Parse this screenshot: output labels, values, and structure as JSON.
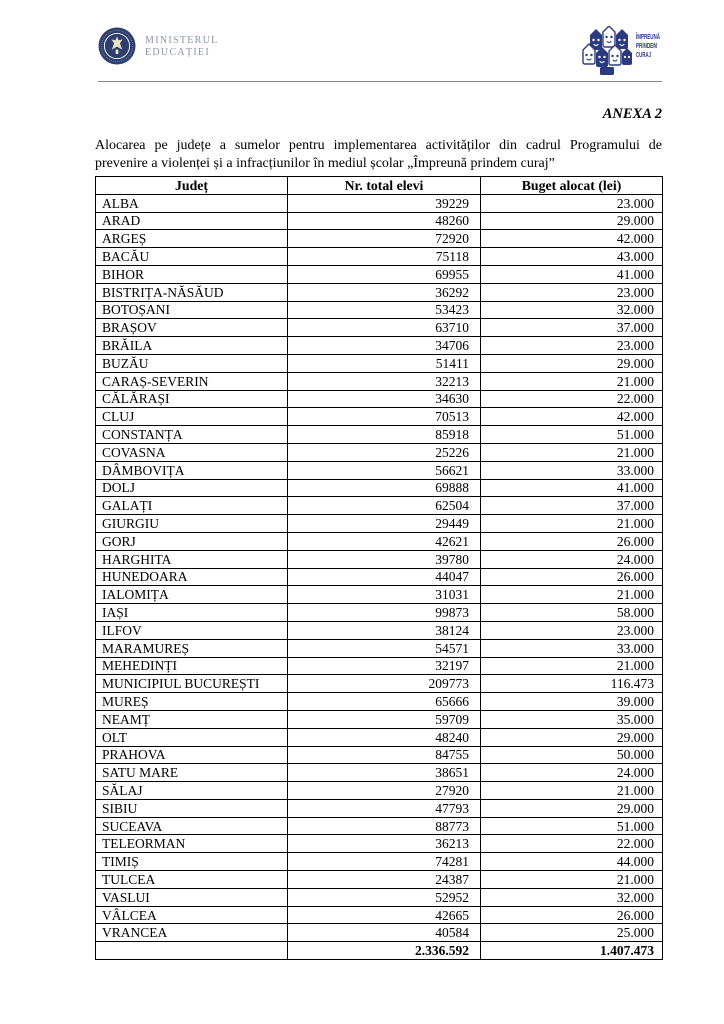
{
  "header": {
    "ministry": {
      "line1": "MINISTERUL",
      "line2": "EDUCAȚIEI"
    },
    "campaign": {
      "line1": "ÎMPREUNĂ",
      "line2": "PRINDEM",
      "line3": "CURAJ"
    }
  },
  "anexa_label": "ANEXA 2",
  "title": {
    "line1": "Alocarea pe județe a sumelor pentru implementarea activităților din cadrul Programului de",
    "line2": "prevenire a violenței și a infracțiunilor în mediul școlar „Împreună prindem curaj”"
  },
  "table": {
    "columns": [
      "Județ",
      "Nr. total elevi",
      "Buget alocat (lei)"
    ],
    "rows": [
      [
        "ALBA",
        "39229",
        "23.000"
      ],
      [
        "ARAD",
        "48260",
        "29.000"
      ],
      [
        "ARGEȘ",
        "72920",
        "42.000"
      ],
      [
        "BACĂU",
        "75118",
        "43.000"
      ],
      [
        "BIHOR",
        "69955",
        "41.000"
      ],
      [
        "BISTRIȚA-NĂSĂUD",
        "36292",
        "23.000"
      ],
      [
        "BOTOȘANI",
        "53423",
        "32.000"
      ],
      [
        "BRAȘOV",
        "63710",
        "37.000"
      ],
      [
        "BRĂILA",
        "34706",
        "23.000"
      ],
      [
        "BUZĂU",
        "51411",
        "29.000"
      ],
      [
        "CARAȘ-SEVERIN",
        "32213",
        "21.000"
      ],
      [
        "CĂLĂRAȘI",
        "34630",
        "22.000"
      ],
      [
        "CLUJ",
        "70513",
        "42.000"
      ],
      [
        "CONSTANȚA",
        "85918",
        "51.000"
      ],
      [
        "COVASNA",
        "25226",
        "21.000"
      ],
      [
        "DÂMBOVIȚA",
        "56621",
        "33.000"
      ],
      [
        "DOLJ",
        "69888",
        "41.000"
      ],
      [
        "GALAȚI",
        "62504",
        "37.000"
      ],
      [
        "GIURGIU",
        "29449",
        "21.000"
      ],
      [
        "GORJ",
        "42621",
        "26.000"
      ],
      [
        "HARGHITA",
        "39780",
        "24.000"
      ],
      [
        "HUNEDOARA",
        "44047",
        "26.000"
      ],
      [
        "IALOMIȚA",
        "31031",
        "21.000"
      ],
      [
        "IAȘI",
        "99873",
        "58.000"
      ],
      [
        "ILFOV",
        "38124",
        "23.000"
      ],
      [
        "MARAMUREȘ",
        "54571",
        "33.000"
      ],
      [
        "MEHEDINȚI",
        "32197",
        "21.000"
      ],
      [
        "MUNICIPIUL BUCUREȘTI",
        "209773",
        "116.473"
      ],
      [
        "MUREȘ",
        "65666",
        "39.000"
      ],
      [
        "NEAMȚ",
        "59709",
        "35.000"
      ],
      [
        "OLT",
        "48240",
        "29.000"
      ],
      [
        "PRAHOVA",
        "84755",
        "50.000"
      ],
      [
        "SATU MARE",
        "38651",
        "24.000"
      ],
      [
        "SĂLAJ",
        "27920",
        "21.000"
      ],
      [
        "SIBIU",
        "47793",
        "29.000"
      ],
      [
        "SUCEAVA",
        "88773",
        "51.000"
      ],
      [
        "TELEORMAN",
        "36213",
        "22.000"
      ],
      [
        "TIMIȘ",
        "74281",
        "44.000"
      ],
      [
        "TULCEA",
        "24387",
        "21.000"
      ],
      [
        "VASLUI",
        "52952",
        "32.000"
      ],
      [
        "VÂLCEA",
        "42665",
        "26.000"
      ],
      [
        "VRANCEA",
        "40584",
        "25.000"
      ]
    ],
    "total_row": {
      "judet": "",
      "elevi": "2.336.592",
      "buget": "1.407.473"
    }
  },
  "colors": {
    "seal_navy": "#2e3f6e",
    "campaign_navy": "#2c3a80",
    "ministry_text_gray_blue": "#8a93a8",
    "header_rule_gray": "#8a8a8a",
    "body_text": "#000000"
  }
}
